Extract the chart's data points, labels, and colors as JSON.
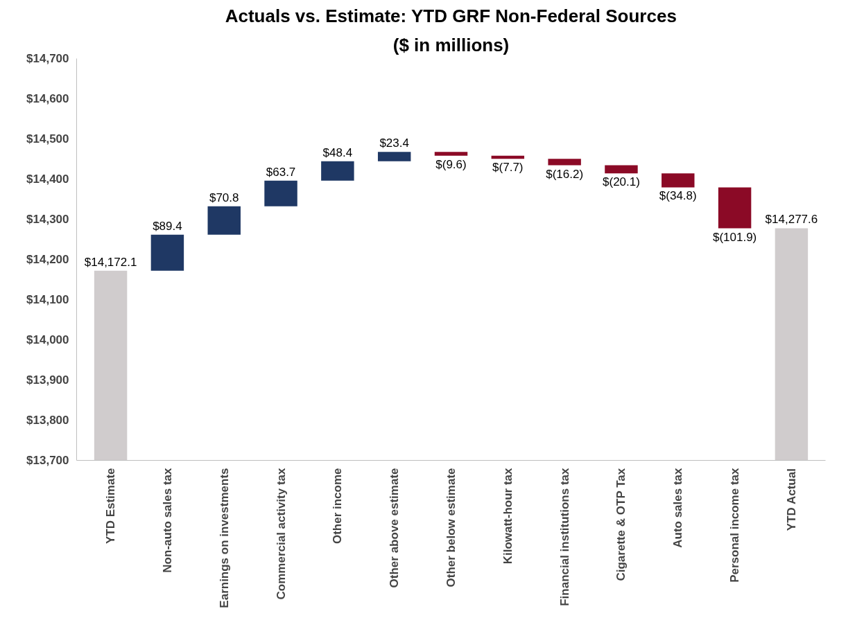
{
  "chart_data": {
    "type": "bar",
    "title": "Actuals vs. Estimate: YTD GRF Non-Federal Sources",
    "subtitle": "($ in millions)",
    "categories": [
      "YTD Estimate",
      "Non-auto sales tax",
      "Earnings on investments",
      "Commercial activity tax",
      "Other income",
      "Other above estimate",
      "Other below estimate",
      "Kilowatt-hour tax",
      "Financial institutions tax",
      "Cigarette & OTP Tax",
      "Auto sales tax",
      "Personal income tax",
      "YTD Actual"
    ],
    "values": [
      14172.1,
      89.4,
      70.8,
      63.7,
      48.4,
      23.4,
      -9.6,
      -7.7,
      -16.2,
      -20.1,
      -34.8,
      -101.9,
      14277.6
    ],
    "base": [
      0,
      14172.1,
      14261.5,
      14332.3,
      14396.0,
      14444.4,
      14467.8,
      14458.2,
      14450.5,
      14434.3,
      14414.2,
      14379.4,
      0
    ],
    "colors": [
      "#d0cccd",
      "#1f3864",
      "#1f3864",
      "#1f3864",
      "#1f3864",
      "#1f3864",
      "#8b0a26",
      "#8b0a26",
      "#8b0a26",
      "#8b0a26",
      "#8b0a26",
      "#8b0a26",
      "#d0cccd"
    ],
    "value_labels": [
      "$14,172.1",
      "$89.4",
      "$70.8",
      "$63.7",
      "$48.4",
      "$23.4",
      "$(9.6)",
      "$(7.7)",
      "$(16.2)",
      "$(20.1)",
      "$(34.8)",
      "$(101.9)",
      "$14,277.6"
    ],
    "ylim": [
      13700,
      14700
    ],
    "yticks": [
      {
        "value": 13700,
        "label": "$13,700"
      },
      {
        "value": 13800,
        "label": "$13,800"
      },
      {
        "value": 13900,
        "label": "$13,900"
      },
      {
        "value": 14000,
        "label": "$14,000"
      },
      {
        "value": 14100,
        "label": "$14,100"
      },
      {
        "value": 14200,
        "label": "$14,200"
      },
      {
        "value": 14300,
        "label": "$14,300"
      },
      {
        "value": 14400,
        "label": "$14,400"
      },
      {
        "value": 14500,
        "label": "$14,500"
      },
      {
        "value": 14600,
        "label": "$14,600"
      },
      {
        "value": 14700,
        "label": "$14,700"
      }
    ],
    "grid": false
  }
}
